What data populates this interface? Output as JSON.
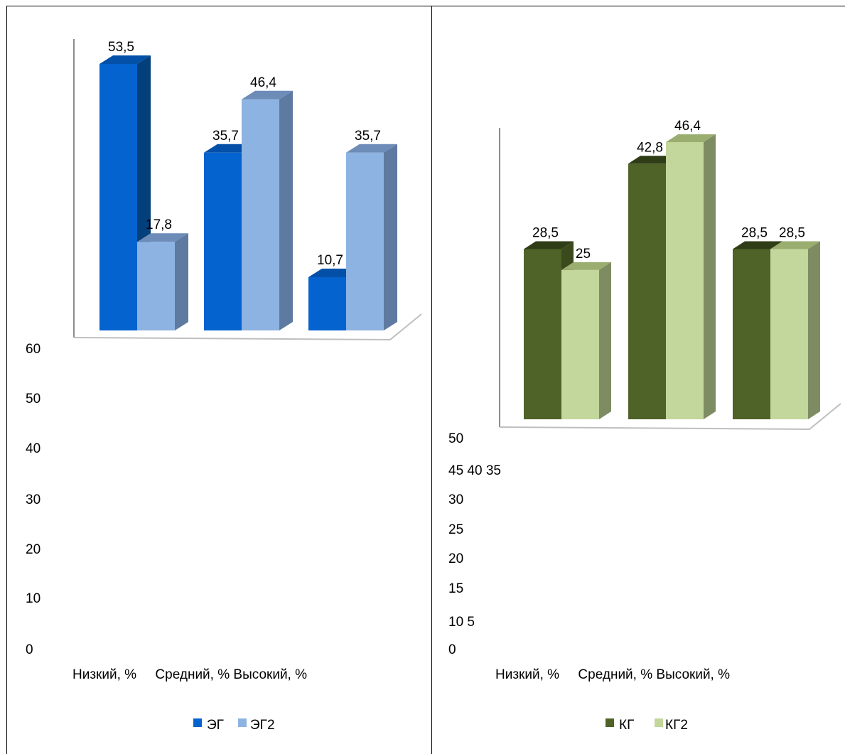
{
  "chart_data": [
    {
      "type": "bar",
      "categories": [
        "Низкий, %",
        "Средний, %",
        "Высокий, %"
      ],
      "category_line": "Низкий, %     Средний, % Высокий, %",
      "y_ticks": [
        "60",
        "50",
        "40",
        "30",
        "20",
        "10",
        "0"
      ],
      "ylim": [
        0,
        60
      ],
      "series": [
        {
          "name": "ЭГ",
          "values": [
            53.5,
            35.7,
            10.7
          ],
          "labels": [
            "53,5",
            "35,7",
            "10,7"
          ],
          "color": "#0563CF",
          "side_color": "#033f7a",
          "top_color": "#0450a8"
        },
        {
          "name": "ЭГ2",
          "values": [
            17.8,
            46.4,
            35.7
          ],
          "labels": [
            "17,8",
            "46,4",
            "35,7"
          ],
          "color": "#8DB3E2",
          "side_color": "#5f7aa0",
          "top_color": "#6d8cb8"
        }
      ],
      "legend_position": "bottom"
    },
    {
      "type": "bar",
      "categories": [
        "Низкий, %",
        "Средний, %",
        "Высокий, %"
      ],
      "category_line": "Низкий, %     Средний, % Высокий, %",
      "y_ticks": [
        "50",
        "45 40 35",
        "30",
        "25",
        "20",
        "15",
        "10 5",
        "0"
      ],
      "ylim": [
        0,
        50
      ],
      "series": [
        {
          "name": "КГ",
          "values": [
            28.5,
            42.8,
            28.5
          ],
          "labels": [
            "28,5",
            "42,8",
            "28,5"
          ],
          "color": "#4F6228",
          "side_color": "#3a4a1d",
          "top_color": "#2f3d17"
        },
        {
          "name": "КГ2",
          "values": [
            25,
            46.4,
            28.5
          ],
          "labels": [
            "25",
            "46,4",
            "28,5"
          ],
          "color": "#C3D69B",
          "side_color": "#7d8c62",
          "top_color": "#9aae70"
        }
      ],
      "legend_position": "bottom"
    }
  ]
}
